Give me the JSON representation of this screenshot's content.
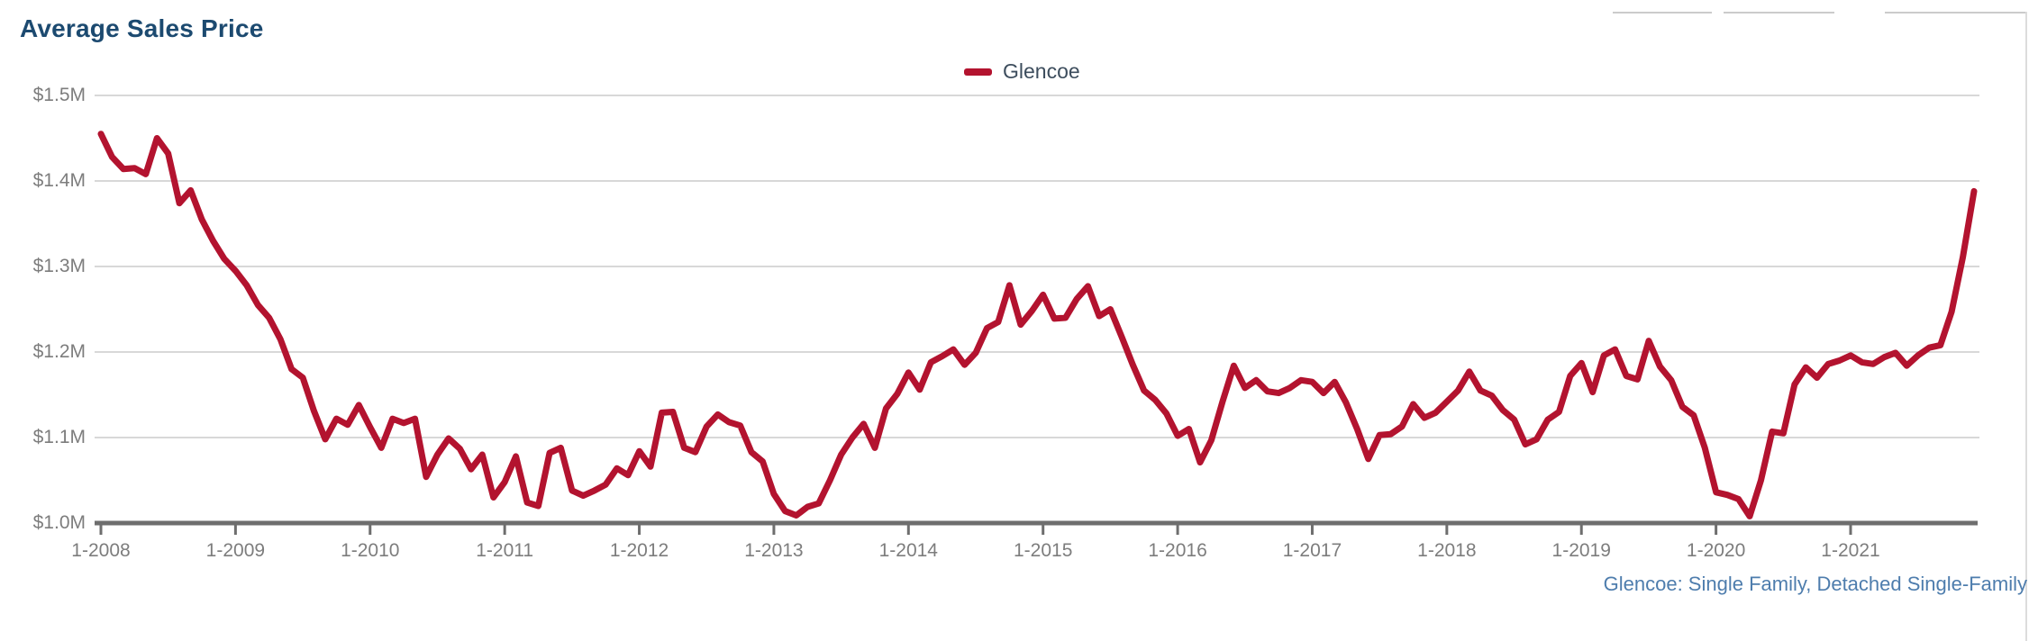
{
  "header": {
    "title": "Average Sales Price",
    "title_color": "#1c4a70"
  },
  "legend": {
    "items": [
      {
        "label": "Glencoe",
        "color": "#b3132f"
      }
    ]
  },
  "footnote": {
    "text": "Glencoe: Single Family, Detached Single-Family",
    "color": "#4e7dad"
  },
  "chart_data": {
    "type": "line",
    "title": "Average Sales Price",
    "xlabel": "",
    "ylabel": "",
    "y_unit": "millions of dollars",
    "ylim": [
      1.0,
      1.5
    ],
    "grid": "horizontal",
    "legend_position": "top-center",
    "x_range": {
      "from": "2008-01",
      "to": "2021-12",
      "step": "month"
    },
    "x_tick_labels": [
      "1-2008",
      "1-2009",
      "1-2010",
      "1-2011",
      "1-2012",
      "1-2013",
      "1-2014",
      "1-2015",
      "1-2016",
      "1-2017",
      "1-2018",
      "1-2019",
      "1-2020",
      "1-2021"
    ],
    "y_tick_labels": [
      "$1.5M",
      "$1.4M",
      "$1.3M",
      "$1.2M",
      "$1.1M",
      "$1.0M"
    ],
    "y_tick_values": [
      1.5,
      1.4,
      1.3,
      1.2,
      1.1,
      1.0
    ],
    "series": [
      {
        "name": "Glencoe",
        "color": "#b3132f",
        "values": [
          1.455,
          1.428,
          1.414,
          1.415,
          1.408,
          1.45,
          1.432,
          1.374,
          1.389,
          1.355,
          1.33,
          1.309,
          1.295,
          1.278,
          1.255,
          1.24,
          1.215,
          1.18,
          1.17,
          1.131,
          1.098,
          1.122,
          1.115,
          1.138,
          1.112,
          1.088,
          1.122,
          1.117,
          1.122,
          1.054,
          1.08,
          1.099,
          1.087,
          1.063,
          1.08,
          1.03,
          1.048,
          1.078,
          1.024,
          1.02,
          1.082,
          1.088,
          1.038,
          1.032,
          1.038,
          1.045,
          1.064,
          1.056,
          1.084,
          1.066,
          1.129,
          1.13,
          1.088,
          1.083,
          1.113,
          1.127,
          1.118,
          1.114,
          1.083,
          1.072,
          1.034,
          1.014,
          1.009,
          1.019,
          1.023,
          1.05,
          1.08,
          1.1,
          1.116,
          1.088,
          1.134,
          1.151,
          1.176,
          1.156,
          1.188,
          1.195,
          1.203,
          1.185,
          1.199,
          1.228,
          1.235,
          1.278,
          1.232,
          1.248,
          1.267,
          1.239,
          1.24,
          1.262,
          1.277,
          1.242,
          1.25,
          1.218,
          1.185,
          1.155,
          1.144,
          1.128,
          1.102,
          1.11,
          1.071,
          1.097,
          1.142,
          1.184,
          1.158,
          1.167,
          1.154,
          1.152,
          1.158,
          1.167,
          1.165,
          1.152,
          1.165,
          1.141,
          1.11,
          1.075,
          1.103,
          1.104,
          1.113,
          1.139,
          1.123,
          1.129,
          1.142,
          1.155,
          1.177,
          1.155,
          1.149,
          1.132,
          1.121,
          1.092,
          1.098,
          1.121,
          1.13,
          1.172,
          1.187,
          1.153,
          1.196,
          1.203,
          1.172,
          1.168,
          1.213,
          1.183,
          1.167,
          1.136,
          1.126,
          1.088,
          1.036,
          1.033,
          1.028,
          1.008,
          1.05,
          1.107,
          1.105,
          1.162,
          1.182,
          1.17,
          1.186,
          1.19,
          1.196,
          1.188,
          1.186,
          1.194,
          1.199,
          1.184,
          1.196,
          1.205,
          1.208,
          1.247,
          1.311,
          1.388
        ]
      }
    ]
  }
}
